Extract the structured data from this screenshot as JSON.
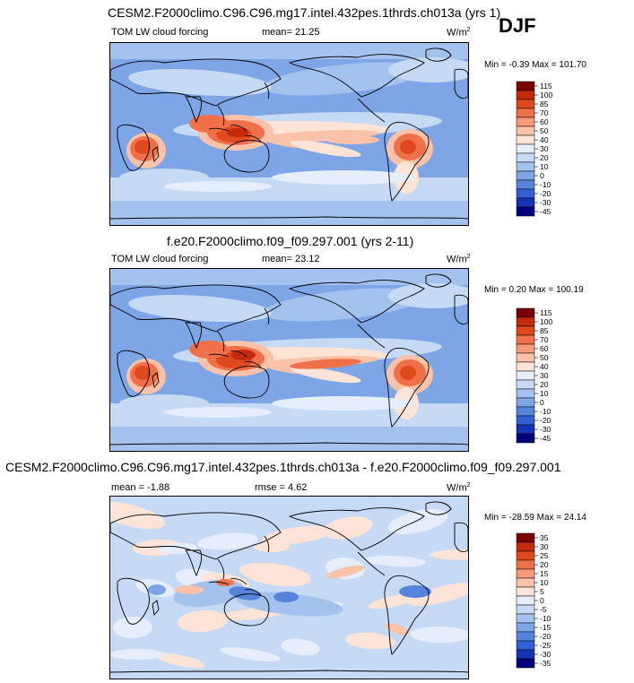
{
  "season": "DJF",
  "panels": [
    {
      "title": "CESM2.F2000climo.C96.C96.mg17.intel.432pes.1thrds.ch013a (yrs 1)",
      "left_label": "TOM LW cloud forcing",
      "stat_label": "mean=",
      "stat_value": "21.25",
      "units": "W/m",
      "units_sup": "2",
      "min_label": "Min =",
      "min_value": "-0.39",
      "max_label": "Max =",
      "max_value": "101.70"
    },
    {
      "title": "f.e20.F2000climo.f09_f09.297.001 (yrs 2-11)",
      "left_label": "TOM LW cloud forcing",
      "stat_label": "mean=",
      "stat_value": "23.12",
      "units": "W/m",
      "units_sup": "2",
      "min_label": "Min =",
      "min_value": "0.20",
      "max_label": "Max =",
      "max_value": "100.19"
    },
    {
      "title": "CESM2.F2000climo.C96.C96.mg17.intel.432pes.1thrds.ch013a - f.e20.F2000climo.f09_f09.297.001",
      "mean_label": "mean =",
      "mean_value": "-1.88",
      "stat_label": "rmse =",
      "stat_value": "4.62",
      "units": "W/m",
      "units_sup": "2",
      "min_label": "Min =",
      "min_value": "-28.59",
      "max_label": "Max =",
      "max_value": "24.14"
    }
  ],
  "chart_data": [
    {
      "type": "heatmap",
      "title": "CESM2.F2000climo.C96.C96.mg17.intel.432pes.1thrds.ch013a (yrs 1)",
      "variable": "TOM LW cloud forcing",
      "units": "W/m2",
      "mean": 21.25,
      "min": -0.39,
      "max": 101.7,
      "colorbar_levels": [
        "115",
        "100",
        "85",
        "70",
        "60",
        "50",
        "40",
        "30",
        "20",
        "10",
        "0",
        "-10",
        "-20",
        "-30",
        "-45"
      ],
      "colorbar_colors": [
        "#7b0000",
        "#c42a0c",
        "#e0481e",
        "#f0704a",
        "#f69a78",
        "#fac2a8",
        "#fde4d6",
        "#e6eefb",
        "#c7daf5",
        "#a4c2ee",
        "#7ea6e6",
        "#5584dd",
        "#3060d2",
        "#1534b4",
        "#00007a"
      ]
    },
    {
      "type": "heatmap",
      "title": "f.e20.F2000climo.f09_f09.297.001 (yrs 2-11)",
      "variable": "TOM LW cloud forcing",
      "units": "W/m2",
      "mean": 23.12,
      "min": 0.2,
      "max": 100.19,
      "colorbar_levels": [
        "115",
        "100",
        "85",
        "70",
        "60",
        "50",
        "40",
        "30",
        "20",
        "10",
        "0",
        "-10",
        "-20",
        "-30",
        "-45"
      ],
      "colorbar_colors": [
        "#7b0000",
        "#c42a0c",
        "#e0481e",
        "#f0704a",
        "#f69a78",
        "#fac2a8",
        "#fde4d6",
        "#e6eefb",
        "#c7daf5",
        "#a4c2ee",
        "#7ea6e6",
        "#5584dd",
        "#3060d2",
        "#1534b4",
        "#00007a"
      ]
    },
    {
      "type": "heatmap",
      "title": "CESM2.F2000climo.C96.C96.mg17.intel.432pes.1thrds.ch013a - f.e20.F2000climo.f09_f09.297.001",
      "units": "W/m2",
      "mean": -1.88,
      "rmse": 4.62,
      "min": -28.59,
      "max": 24.14,
      "colorbar_levels": [
        "35",
        "30",
        "25",
        "20",
        "15",
        "10",
        "5",
        "0",
        "-5",
        "-10",
        "-15",
        "-20",
        "-25",
        "-30",
        "-35"
      ],
      "colorbar_colors": [
        "#7b0000",
        "#c42a0c",
        "#e0481e",
        "#f0704a",
        "#f69a78",
        "#fac2a8",
        "#fde4d6",
        "#e6eefb",
        "#c7daf5",
        "#a4c2ee",
        "#7ea6e6",
        "#5584dd",
        "#3060d2",
        "#1534b4",
        "#00007a"
      ]
    }
  ]
}
